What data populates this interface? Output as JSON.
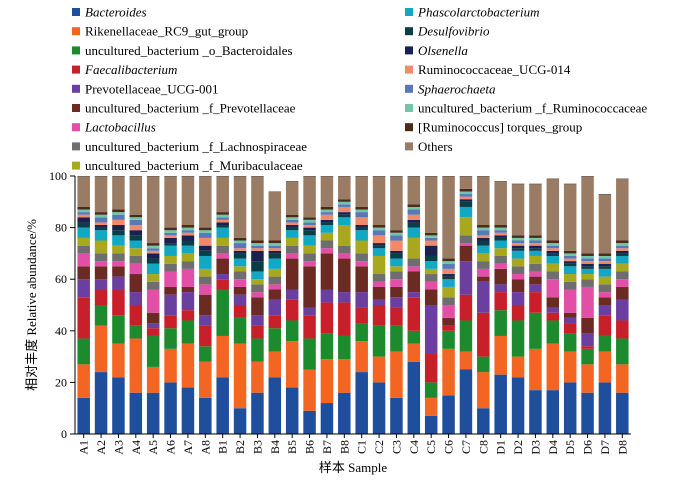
{
  "chart_data": {
    "type": "bar",
    "stacked": true,
    "title": "",
    "xlabel": "样本 Sample",
    "ylabel": "相对丰度 Relative abundance/%",
    "ylim": [
      0,
      100
    ],
    "yticks": [
      0,
      20,
      40,
      60,
      80,
      100
    ],
    "legend_position": "top",
    "categories": [
      "A1",
      "A2",
      "A3",
      "A4",
      "A5",
      "A6",
      "A7",
      "A8",
      "B1",
      "B2",
      "B3",
      "B4",
      "B5",
      "B6",
      "B7",
      "B8",
      "C1",
      "C2",
      "C3",
      "C4",
      "C5",
      "C6",
      "C7",
      "C8",
      "D1",
      "D2",
      "D3",
      "D4",
      "D5",
      "D6",
      "D7",
      "D8"
    ],
    "series": [
      {
        "name": "Bacteroides",
        "italic": true,
        "color": "#1f4e9c",
        "values": [
          14,
          24,
          22,
          16,
          16,
          20,
          18,
          14,
          22,
          10,
          16,
          22,
          18,
          9,
          12,
          16,
          24,
          20,
          14,
          28,
          7,
          15,
          25,
          10,
          23,
          22,
          17,
          17,
          20,
          16,
          20,
          16
        ]
      },
      {
        "name": "Rikenellaceae_RC9_gut_group",
        "italic": false,
        "color": "#f26522",
        "values": [
          13,
          18,
          13,
          21,
          10,
          13,
          17,
          14,
          16,
          25,
          12,
          10,
          18,
          16,
          17,
          13,
          12,
          10,
          18,
          7,
          7,
          18,
          7,
          14,
          15,
          8,
          16,
          18,
          12,
          11,
          12,
          11
        ]
      },
      {
        "name": "uncultured_bacterium _o_Bacteroidales",
        "italic": false,
        "color": "#1d8a2e",
        "values": [
          10,
          8,
          11,
          5,
          12,
          8,
          9,
          6,
          18,
          10,
          9,
          9,
          8,
          12,
          10,
          9,
          7,
          12,
          10,
          5,
          6,
          7,
          12,
          6,
          10,
          14,
          14,
          9,
          7,
          6,
          6,
          10
        ]
      },
      {
        "name": "Faecalibacterium",
        "italic": true,
        "color": "#c8202a",
        "values": [
          16,
          6,
          10,
          8,
          3,
          5,
          4,
          8,
          4,
          5,
          5,
          5,
          8,
          9,
          12,
          13,
          6,
          8,
          7,
          13,
          11,
          2,
          10,
          17,
          7,
          6,
          8,
          3,
          4,
          1,
          8,
          7
        ]
      },
      {
        "name": "Prevotellaceae_UCG-001",
        "italic": false,
        "color": "#6a3fa0",
        "values": [
          7,
          4,
          5,
          5,
          2,
          8,
          7,
          4,
          2,
          4,
          4,
          6,
          4,
          3,
          5,
          4,
          6,
          2,
          4,
          2,
          19,
          0,
          13,
          12,
          3,
          5,
          3,
          2,
          2,
          5,
          4,
          8
        ]
      },
      {
        "name": "uncultured_bacterium _f_Prevotellaceae",
        "italic": false,
        "color": "#6b2a22",
        "values": [
          5,
          5,
          4,
          7,
          4,
          3,
          2,
          8,
          6,
          3,
          7,
          4,
          12,
          16,
          14,
          13,
          10,
          5,
          4,
          8,
          6,
          3,
          6,
          2,
          6,
          5,
          3,
          4,
          2,
          6,
          3,
          5
        ]
      },
      {
        "name": "Lactobacillus",
        "italic": true,
        "color": "#e24fa6",
        "values": [
          5,
          2,
          2,
          4,
          9,
          6,
          7,
          4,
          2,
          3,
          2,
          2,
          2,
          2,
          2,
          2,
          2,
          2,
          3,
          2,
          3,
          5,
          1,
          3,
          2,
          2,
          2,
          7,
          9,
          12,
          2,
          3
        ]
      },
      {
        "name": "uncultured_bacterium _f_Lachnospiraceae",
        "italic": false,
        "color": "#6e6e6e",
        "values": [
          3,
          3,
          3,
          3,
          3,
          3,
          3,
          3,
          3,
          3,
          3,
          3,
          3,
          3,
          3,
          3,
          3,
          3,
          3,
          3,
          3,
          3,
          3,
          3,
          3,
          3,
          3,
          3,
          3,
          3,
          3,
          3
        ]
      },
      {
        "name": "uncultured_bacterium _f_Muribaculaceae",
        "italic": false,
        "color": "#a7a81e",
        "values": [
          3,
          5,
          3,
          3,
          3,
          3,
          3,
          3,
          3,
          2,
          2,
          3,
          3,
          3,
          3,
          8,
          5,
          7,
          2,
          8,
          2,
          4,
          7,
          3,
          3,
          3,
          3,
          3,
          3,
          2,
          3,
          3
        ]
      },
      {
        "name": "Phascolarctobacterium",
        "italic": true,
        "color": "#12a8c4",
        "values": [
          4,
          4,
          4,
          3,
          4,
          4,
          3,
          5,
          4,
          3,
          3,
          4,
          3,
          4,
          3,
          3,
          4,
          3,
          3,
          4,
          3,
          3,
          4,
          3,
          3,
          3,
          2,
          3,
          3,
          2,
          3,
          3
        ]
      },
      {
        "name": "Desulfovibrio",
        "italic": true,
        "color": "#0a3e46",
        "values": [
          2,
          1,
          2,
          2,
          2,
          1,
          2,
          2,
          1,
          2,
          4,
          2,
          1,
          2,
          1,
          1,
          1,
          1,
          2,
          2,
          2,
          1,
          2,
          2,
          1,
          1,
          1,
          1,
          1,
          1,
          1,
          1
        ]
      },
      {
        "name": "Olsenella",
        "italic": true,
        "color": "#1a2050",
        "values": [
          2,
          1,
          2,
          2,
          2,
          2,
          2,
          2,
          1,
          1,
          4,
          1,
          1,
          1,
          1,
          1,
          1,
          1,
          1,
          1,
          4,
          1,
          1,
          1,
          1,
          1,
          1,
          1,
          1,
          1,
          1,
          1
        ]
      },
      {
        "name": "Ruminococcaceae_UCG-014",
        "italic": false,
        "color": "#f08a6a",
        "values": [
          1,
          1,
          2,
          2,
          1,
          1,
          1,
          3,
          1,
          1,
          1,
          1,
          1,
          1,
          2,
          2,
          3,
          3,
          4,
          2,
          2,
          2,
          1,
          1,
          1,
          1,
          1,
          1,
          1,
          1,
          1,
          1
        ]
      },
      {
        "name": "Sphaerochaeta",
        "italic": true,
        "color": "#5878b8",
        "values": [
          1,
          2,
          2,
          2,
          1,
          1,
          1,
          2,
          1,
          2,
          1,
          1,
          1,
          1,
          1,
          1,
          2,
          2,
          2,
          2,
          1,
          2,
          1,
          2,
          1,
          1,
          1,
          1,
          1,
          1,
          1,
          1
        ]
      },
      {
        "name": "uncultured_bacterium _f_Ruminococcaceae",
        "italic": false,
        "color": "#72c6a8",
        "values": [
          1,
          1,
          1,
          1,
          1,
          1,
          1,
          1,
          1,
          1,
          1,
          1,
          1,
          1,
          1,
          1,
          1,
          1,
          1,
          1,
          1,
          1,
          1,
          1,
          1,
          1,
          1,
          1,
          1,
          1,
          1,
          1
        ]
      },
      {
        "name": "[Ruminococcus] torques_group",
        "italic": false,
        "color": "#4a2a18",
        "values": [
          1,
          1,
          1,
          1,
          1,
          1,
          1,
          1,
          1,
          1,
          1,
          1,
          1,
          1,
          1,
          1,
          1,
          1,
          1,
          1,
          1,
          1,
          1,
          1,
          1,
          1,
          1,
          1,
          1,
          1,
          1,
          1
        ]
      },
      {
        "name": "Others",
        "italic": false,
        "color": "#9a7b64",
        "values": [
          12,
          14,
          13,
          15,
          26,
          20,
          19,
          20,
          14,
          24,
          25,
          19,
          13,
          18,
          12,
          13,
          12,
          19,
          21,
          11,
          22,
          32,
          5,
          19,
          17,
          20,
          20,
          24,
          26,
          30,
          23,
          24
        ]
      }
    ]
  }
}
